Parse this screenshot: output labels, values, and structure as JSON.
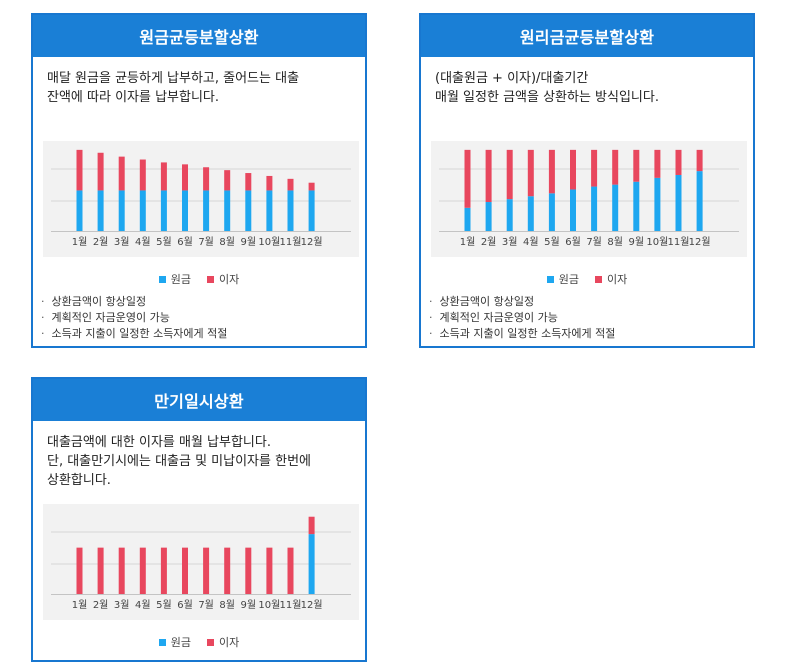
{
  "colors": {
    "principal": "#1ea7f0",
    "interest": "#e8475e",
    "accent": "#1a7fd6"
  },
  "cards": [
    {
      "title": "원금균등분할상환",
      "desc": "매달 원금을 균등하게 납부하고, 줄어드는 대출\n잔액에 따라 이자를 납부합니다.",
      "legend": {
        "principal": "원금",
        "interest": "이자"
      },
      "notes": [
        "상환금액이 항상일정",
        "계획적인 자금운영이 가능",
        "소득과 지출이 일정한 소득자에게 적절"
      ],
      "chart_data": {
        "type": "bar",
        "stacked": true,
        "categories": [
          "1월",
          "2월",
          "3월",
          "4월",
          "5월",
          "6월",
          "7월",
          "8월",
          "9월",
          "10월",
          "11월",
          "12월"
        ],
        "series": [
          {
            "name": "원금",
            "values": [
              42,
              42,
              42,
              42,
              42,
              42,
              42,
              42,
              42,
              42,
              42,
              42
            ]
          },
          {
            "name": "이자",
            "values": [
              42,
              39,
              35,
              32,
              29,
              27,
              24,
              21,
              18,
              15,
              12,
              8
            ]
          }
        ],
        "ylim": [
          0,
          88
        ]
      }
    },
    {
      "title": "원리금균등분할상환",
      "desc": "(대출원금 + 이자)/대출기간\n매월 일정한 금액을 상환하는 방식입니다.",
      "legend": {
        "principal": "원금",
        "interest": "이자"
      },
      "notes": [
        "상환금액이 항상일정",
        "계획적인 자금운영이 가능",
        "소득과 지출이 일정한 소득자에게 적절"
      ],
      "chart_data": {
        "type": "bar",
        "stacked": true,
        "categories": [
          "1월",
          "2월",
          "3월",
          "4월",
          "5월",
          "6월",
          "7월",
          "8월",
          "9월",
          "10월",
          "11월",
          "12월"
        ],
        "series": [
          {
            "name": "원금",
            "values": [
              24,
              30,
              33,
              36,
              39,
              43,
              46,
              48,
              51,
              55,
              58,
              62
            ]
          },
          {
            "name": "이자",
            "values": [
              60,
              54,
              51,
              48,
              45,
              41,
              38,
              36,
              33,
              29,
              26,
              22
            ]
          }
        ],
        "ylim": [
          0,
          88
        ]
      }
    },
    {
      "title": "만기일시상환",
      "desc": "대출금액에 대한 이자를 매월 납부합니다.\n단, 대출만기시에는 대출금 및 미납이자를 한번에\n상환합니다.",
      "legend": {
        "principal": "원금",
        "interest": "이자"
      },
      "notes": [],
      "chart_data": {
        "type": "bar",
        "stacked": true,
        "categories": [
          "1월",
          "2월",
          "3월",
          "4월",
          "5월",
          "6월",
          "7월",
          "8월",
          "9월",
          "10월",
          "11월",
          "12월"
        ],
        "series": [
          {
            "name": "원금",
            "values": [
              0,
              0,
              0,
              0,
              0,
              0,
              0,
              0,
              0,
              0,
              0,
              62
            ]
          },
          {
            "name": "이자",
            "values": [
              48,
              48,
              48,
              48,
              48,
              48,
              48,
              48,
              48,
              48,
              48,
              18
            ]
          }
        ],
        "ylim": [
          0,
          88
        ]
      }
    }
  ]
}
